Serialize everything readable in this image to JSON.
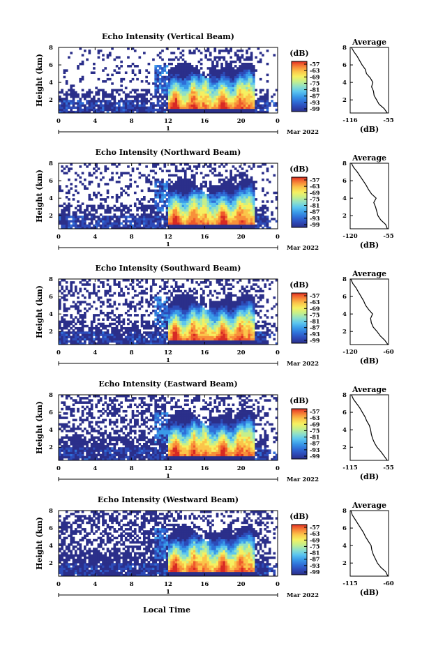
{
  "figure": {
    "xlabel": "Local Time",
    "date_label": "1",
    "month_label": "Mar 2022"
  },
  "colorbar": {
    "unit": "(dB)",
    "ticks": [
      "-57",
      "-63",
      "-69",
      "-75",
      "-81",
      "-87",
      "-93",
      "-99"
    ],
    "colors": [
      "#2b2f8a",
      "#2d4bb8",
      "#2f6fd8",
      "#3a9be8",
      "#5cc6ef",
      "#8fe0c8",
      "#c6ef8a",
      "#f6f060",
      "#fbc54a",
      "#f8903a",
      "#ef5a2c",
      "#d72a24"
    ]
  },
  "chart_data": [
    {
      "type": "heatmap",
      "title": "Echo Intensity (Vertical Beam)",
      "ylabel": "Height (km)",
      "xlim": [
        0,
        24
      ],
      "ylim": [
        0.5,
        8
      ],
      "x_ticks": [
        "0",
        "4",
        "8",
        "12",
        "16",
        "20",
        "0"
      ],
      "y_ticks": [
        "2",
        "4",
        "6",
        "8"
      ],
      "profile": {
        "title": "Average",
        "xlabel": "(dB)",
        "xlim": [
          -116,
          -55
        ],
        "x_ticks": [
          "-116",
          "-55"
        ],
        "y_ticks": [
          "2",
          "4",
          "6",
          "8"
        ],
        "heights": [
          0.5,
          1.0,
          1.5,
          2.0,
          2.5,
          3.0,
          3.5,
          4.0,
          4.5,
          5.0,
          5.5,
          6.0,
          6.5,
          7.0,
          7.5,
          8.0
        ],
        "values": [
          -57,
          -62,
          -70,
          -74,
          -78,
          -79,
          -82,
          -80,
          -84,
          -90,
          -92,
          -97,
          -101,
          -105,
          -110,
          -114
        ]
      }
    },
    {
      "type": "heatmap",
      "title": "Echo Intensity (Northward Beam)",
      "ylabel": "Height (km)",
      "xlim": [
        0,
        24
      ],
      "ylim": [
        0.5,
        8
      ],
      "x_ticks": [
        "0",
        "4",
        "8",
        "12",
        "16",
        "20",
        "0"
      ],
      "y_ticks": [
        "2",
        "4",
        "6",
        "8"
      ],
      "profile": {
        "title": "Average",
        "xlabel": "(dB)",
        "xlim": [
          -120,
          -55
        ],
        "x_ticks": [
          "-120",
          "-55"
        ],
        "y_ticks": [
          "2",
          "4",
          "6",
          "8"
        ],
        "heights": [
          0.5,
          1.0,
          1.5,
          2.0,
          2.5,
          3.0,
          3.5,
          4.0,
          4.5,
          5.0,
          5.5,
          6.0,
          6.5,
          7.0,
          7.5,
          8.0
        ],
        "values": [
          -57,
          -60,
          -68,
          -73,
          -75,
          -77,
          -80,
          -76,
          -84,
          -89,
          -93,
          -98,
          -103,
          -108,
          -114,
          -118
        ]
      }
    },
    {
      "type": "heatmap",
      "title": "Echo Intensity (Southward Beam)",
      "ylabel": "Height (km)",
      "xlim": [
        0,
        24
      ],
      "ylim": [
        0.5,
        8
      ],
      "x_ticks": [
        "0",
        "4",
        "8",
        "12",
        "16",
        "20",
        "0"
      ],
      "y_ticks": [
        "2",
        "4",
        "6",
        "8"
      ],
      "profile": {
        "title": "Average",
        "xlabel": "(dB)",
        "xlim": [
          -120,
          -60
        ],
        "x_ticks": [
          "-120",
          "-60"
        ],
        "y_ticks": [
          "2",
          "4",
          "6",
          "8"
        ],
        "heights": [
          0.5,
          1.0,
          1.5,
          2.0,
          2.5,
          3.0,
          3.5,
          4.0,
          4.5,
          5.0,
          5.5,
          6.0,
          6.5,
          7.0,
          7.5,
          8.0
        ],
        "values": [
          -61,
          -66,
          -73,
          -78,
          -84,
          -87,
          -88,
          -85,
          -91,
          -96,
          -99,
          -103,
          -107,
          -111,
          -116,
          -119
        ]
      }
    },
    {
      "type": "heatmap",
      "title": "Echo Intensity (Eastward Beam)",
      "ylabel": "Height (km)",
      "xlim": [
        0,
        24
      ],
      "ylim": [
        0.5,
        8
      ],
      "x_ticks": [
        "0",
        "4",
        "8",
        "12",
        "16",
        "20",
        "0"
      ],
      "y_ticks": [
        "2",
        "4",
        "6",
        "8"
      ],
      "profile": {
        "title": "Average",
        "xlabel": "(dB)",
        "xlim": [
          -115,
          -55
        ],
        "x_ticks": [
          "-115",
          "-55"
        ],
        "y_ticks": [
          "2",
          "4",
          "6",
          "8"
        ],
        "heights": [
          0.5,
          1.0,
          1.5,
          2.0,
          2.5,
          3.0,
          3.5,
          4.0,
          4.5,
          5.0,
          5.5,
          6.0,
          6.5,
          7.0,
          7.5,
          8.0
        ],
        "values": [
          -57,
          -62,
          -67,
          -73,
          -77,
          -80,
          -82,
          -83,
          -85,
          -89,
          -92,
          -96,
          -100,
          -105,
          -110,
          -113
        ]
      }
    },
    {
      "type": "heatmap",
      "title": "Echo Intensity (Westward Beam)",
      "ylabel": "Height (km)",
      "xlim": [
        0,
        24
      ],
      "ylim": [
        0.5,
        8
      ],
      "x_ticks": [
        "0",
        "4",
        "8",
        "12",
        "16",
        "20",
        "0"
      ],
      "y_ticks": [
        "2",
        "4",
        "6",
        "8"
      ],
      "profile": {
        "title": "Average",
        "xlabel": "(dB)",
        "xlim": [
          -115,
          -60
        ],
        "x_ticks": [
          "-115",
          "-60"
        ],
        "y_ticks": [
          "2",
          "4",
          "6",
          "8"
        ],
        "heights": [
          0.5,
          1.0,
          1.5,
          2.0,
          2.5,
          3.0,
          3.5,
          4.0,
          4.5,
          5.0,
          5.5,
          6.0,
          6.5,
          7.0,
          7.5,
          8.0
        ],
        "values": [
          -61,
          -64,
          -71,
          -76,
          -79,
          -82,
          -84,
          -85,
          -89,
          -93,
          -96,
          -100,
          -104,
          -108,
          -112,
          -114
        ]
      }
    }
  ]
}
